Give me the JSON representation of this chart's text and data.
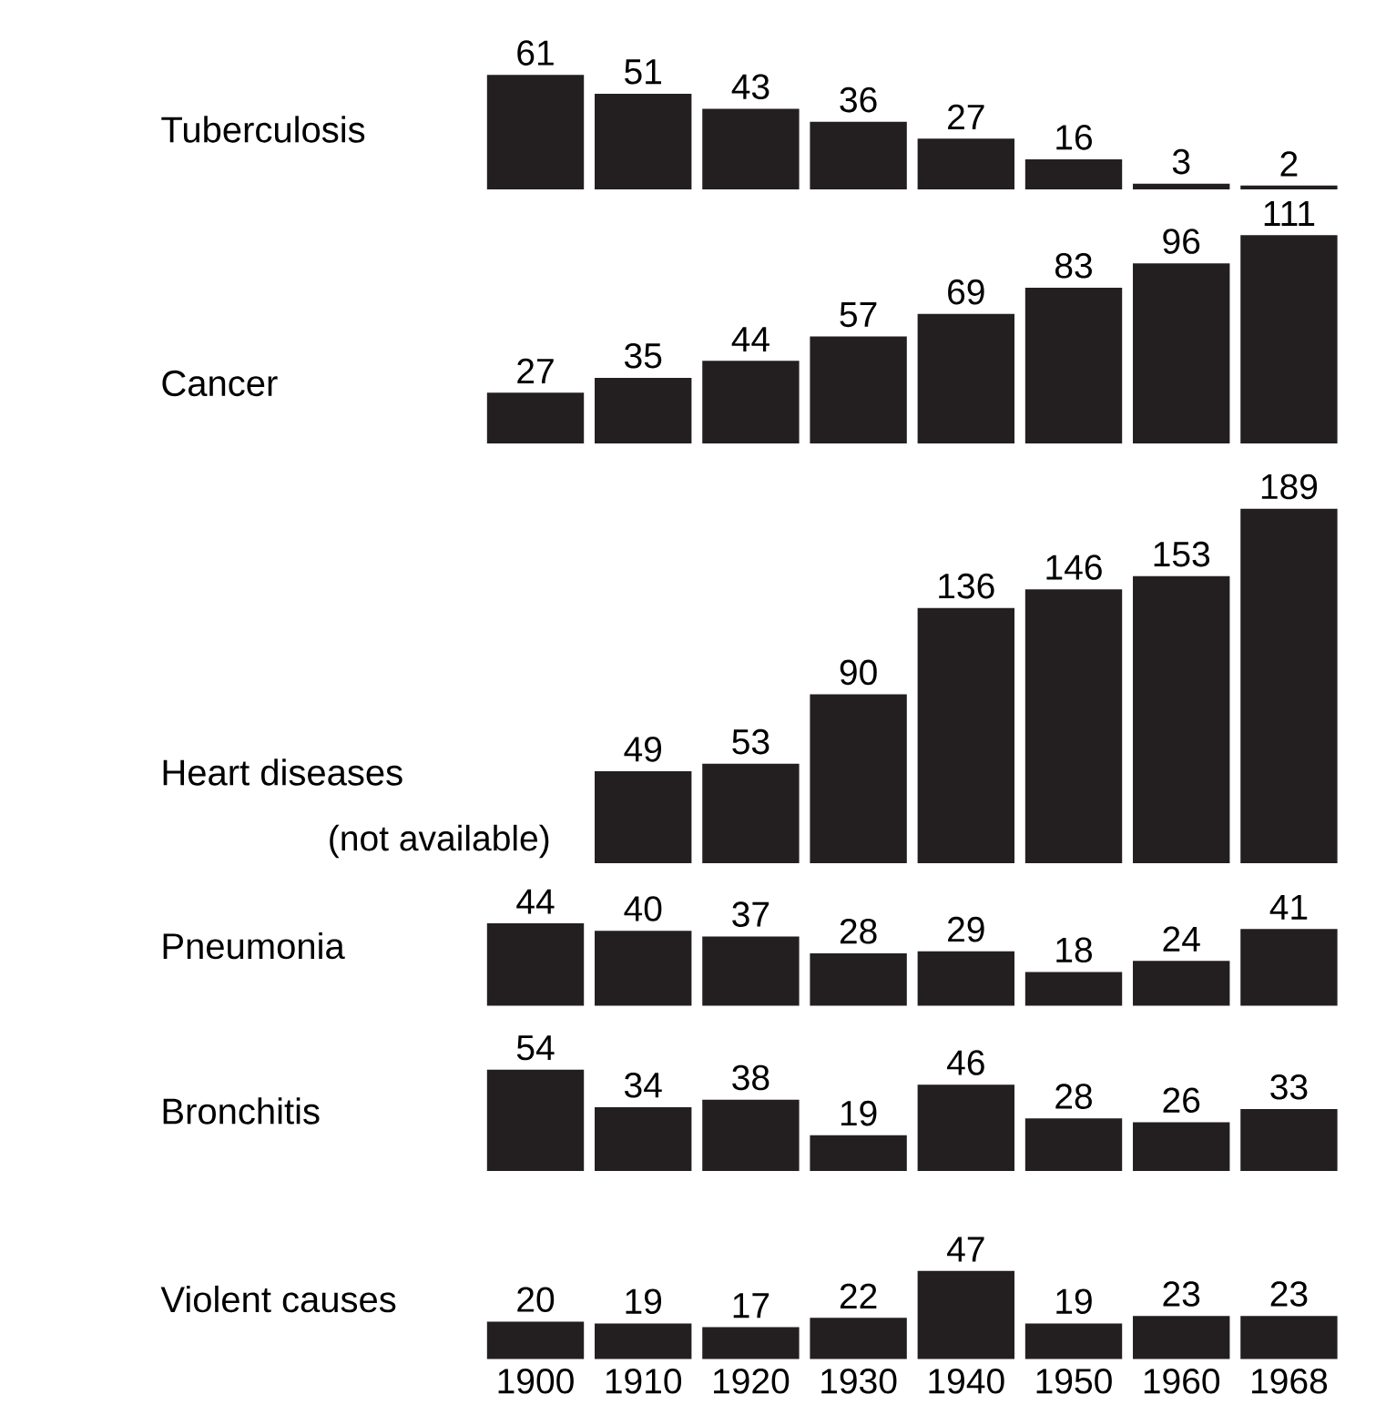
{
  "chart_data": [
    {
      "type": "bar",
      "title": "Tuberculosis",
      "categories": [
        "1900",
        "1910",
        "1920",
        "1930",
        "1940",
        "1950",
        "1960",
        "1968"
      ],
      "values": [
        61,
        51,
        43,
        36,
        27,
        16,
        3,
        2
      ],
      "color": "#231f20",
      "data_labels": true,
      "tick_labels": false
    },
    {
      "type": "bar",
      "title": "Cancer",
      "categories": [
        "1900",
        "1910",
        "1920",
        "1930",
        "1940",
        "1950",
        "1960",
        "1968"
      ],
      "values": [
        27,
        35,
        44,
        57,
        69,
        83,
        96,
        111
      ],
      "color": "#231f20",
      "data_labels": true,
      "tick_labels": false
    },
    {
      "type": "bar",
      "title": "Heart diseases",
      "categories": [
        "1900",
        "1910",
        "1920",
        "1930",
        "1940",
        "1950",
        "1960",
        "1968"
      ],
      "values": [
        null,
        49,
        53,
        90,
        136,
        146,
        153,
        189
      ],
      "color": "#231f20",
      "data_labels": true,
      "tick_labels": false,
      "annotations": [
        "(not available)"
      ]
    },
    {
      "type": "bar",
      "title": "Pneumonia",
      "categories": [
        "1900",
        "1910",
        "1920",
        "1930",
        "1940",
        "1950",
        "1960",
        "1968"
      ],
      "values": [
        44,
        40,
        37,
        28,
        29,
        18,
        24,
        41
      ],
      "color": "#231f20",
      "data_labels": true,
      "tick_labels": false
    },
    {
      "type": "bar",
      "title": "Bronchitis",
      "categories": [
        "1900",
        "1910",
        "1920",
        "1930",
        "1940",
        "1950",
        "1960",
        "1968"
      ],
      "values": [
        54,
        34,
        38,
        19,
        46,
        28,
        26,
        33
      ],
      "color": "#231f20",
      "data_labels": true,
      "tick_labels": false
    },
    {
      "type": "bar",
      "title": "Violent causes",
      "categories": [
        "1900",
        "1910",
        "1920",
        "1930",
        "1940",
        "1950",
        "1960",
        "1968"
      ],
      "values": [
        20,
        19,
        17,
        22,
        47,
        19,
        23,
        23
      ],
      "color": "#231f20",
      "data_labels": true,
      "tick_labels": "x"
    }
  ]
}
